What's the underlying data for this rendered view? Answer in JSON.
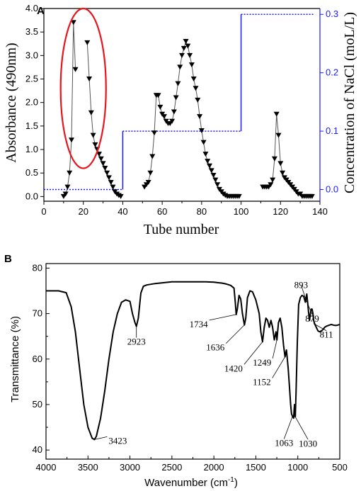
{
  "chart_data": [
    {
      "panel": "A",
      "type": "line",
      "xlabel": "Tube number",
      "ylabel": "Absorbance (490nm)",
      "y2label": "Concentration of NaCl (moL/L)",
      "xlim": [
        0,
        140
      ],
      "ylim": [
        -0.1,
        4.0
      ],
      "y2lim": [
        -0.02,
        0.31
      ],
      "xticks": [
        "0",
        "20",
        "40",
        "60",
        "80",
        "100",
        "120",
        "140"
      ],
      "yticks": [
        "0.0",
        "0.5",
        "1.0",
        "1.5",
        "2.0",
        "2.5",
        "3.0",
        "3.5",
        "4.0"
      ],
      "y2ticks": [
        "0.0",
        "0.1",
        "0.2",
        "0.3"
      ],
      "colors": {
        "absorbance": "#000000",
        "nacl": "#1a1aff",
        "ellipse": "#e8141e"
      },
      "highlight_ellipse": {
        "cx": 20,
        "cy": 2.3,
        "rx": 11.5,
        "ry": 1.7
      },
      "absorbance_segments": [
        {
          "x": [
            10,
            11,
            12,
            13,
            14,
            15,
            16
          ],
          "y": [
            0.0,
            0.05,
            0.2,
            0.5,
            1.2,
            3.7,
            2.7
          ]
        },
        {
          "x": [
            22,
            23,
            24,
            25,
            26,
            27,
            28,
            29,
            30,
            31,
            32,
            33,
            34,
            35,
            36,
            37,
            38,
            39
          ],
          "y": [
            3.27,
            2.5,
            1.78,
            1.3,
            1.1,
            1.0,
            0.9,
            0.8,
            0.7,
            0.6,
            0.5,
            0.4,
            0.3,
            0.2,
            0.1,
            0.05,
            0.02,
            0.0
          ]
        },
        {
          "x": [
            51,
            52,
            53,
            54,
            55,
            56,
            57,
            58,
            59,
            60,
            61,
            62,
            63,
            64,
            65,
            66,
            67,
            68,
            69,
            70,
            71,
            72,
            73,
            74,
            75,
            76,
            77,
            78,
            79,
            80,
            81,
            82,
            83,
            84,
            85,
            86,
            87,
            88,
            89,
            90,
            91,
            92,
            93,
            94,
            95,
            96,
            97,
            98,
            99
          ],
          "y": [
            0.2,
            0.25,
            0.3,
            0.5,
            0.85,
            1.35,
            2.15,
            2.15,
            1.9,
            1.75,
            1.7,
            1.6,
            1.55,
            1.55,
            1.6,
            1.8,
            2.1,
            2.4,
            2.75,
            3.0,
            3.15,
            3.3,
            3.2,
            3.0,
            2.8,
            2.5,
            2.3,
            2.05,
            1.7,
            1.4,
            1.15,
            0.9,
            0.75,
            0.65,
            0.55,
            0.45,
            0.35,
            0.25,
            0.15,
            0.1,
            0.05,
            0.02,
            0.0,
            0.0,
            0.0,
            0.0,
            0.0,
            0.0,
            0.0
          ]
        },
        {
          "x": [
            111,
            112,
            113,
            114,
            115,
            116,
            117,
            118,
            119,
            120,
            121,
            122,
            123,
            124,
            125,
            126,
            127,
            128,
            129,
            130,
            131,
            132,
            133,
            134,
            135,
            136
          ],
          "y": [
            0.2,
            0.2,
            0.2,
            0.2,
            0.25,
            0.35,
            0.8,
            1.75,
            1.3,
            0.7,
            0.5,
            0.4,
            0.35,
            0.3,
            0.25,
            0.2,
            0.15,
            0.1,
            0.05,
            0.05,
            0.0,
            0.0,
            0.0,
            0.0,
            0.0,
            0.0
          ]
        }
      ],
      "nacl_steps": {
        "x": [
          0,
          40,
          40,
          100,
          100,
          137
        ],
        "y": [
          0.0,
          0.0,
          0.1,
          0.1,
          0.3,
          0.3
        ]
      }
    },
    {
      "panel": "B",
      "type": "line",
      "xlabel": "Wavenumber (cm",
      "xlabel_sup": "-1",
      "xlabel_end": ")",
      "ylabel": "Transmittance (%)",
      "xlim": [
        4000,
        500
      ],
      "ylim": [
        38,
        81
      ],
      "xticks": [
        "4000",
        "3500",
        "3000",
        "2500",
        "2000",
        "1500",
        "1000",
        "500"
      ],
      "yticks": [
        "40",
        "50",
        "60",
        "70",
        "80"
      ],
      "spectrum": {
        "x": [
          4000,
          3850,
          3760,
          3700,
          3650,
          3600,
          3550,
          3500,
          3450,
          3423,
          3400,
          3350,
          3300,
          3250,
          3200,
          3150,
          3100,
          3050,
          3000,
          2970,
          2940,
          2923,
          2900,
          2870,
          2840,
          2800,
          2700,
          2600,
          2500,
          2400,
          2300,
          2200,
          2100,
          2000,
          1950,
          1900,
          1850,
          1800,
          1760,
          1745,
          1734,
          1720,
          1700,
          1680,
          1660,
          1636,
          1620,
          1600,
          1570,
          1540,
          1500,
          1460,
          1440,
          1420,
          1400,
          1380,
          1360,
          1340,
          1320,
          1300,
          1280,
          1260,
          1249,
          1230,
          1210,
          1190,
          1170,
          1152,
          1135,
          1115,
          1100,
          1085,
          1075,
          1063,
          1050,
          1040,
          1030,
          1020,
          1005,
          990,
          970,
          950,
          930,
          910,
          893,
          880,
          870,
          860,
          850,
          840,
          830,
          820,
          811,
          800,
          780,
          760,
          740,
          720,
          700,
          680,
          650,
          620,
          600,
          580,
          560,
          540,
          520,
          500
        ],
        "y": [
          75,
          75,
          74.6,
          71.5,
          66,
          58,
          50,
          45,
          42.6,
          42.3,
          43,
          47,
          53,
          60,
          66,
          70,
          72.5,
          73,
          72.7,
          70,
          68,
          67.2,
          69,
          74.5,
          76,
          76.3,
          76.6,
          76.8,
          77,
          77,
          77,
          77,
          77,
          76.9,
          76.8,
          76.7,
          76.5,
          76.2,
          75.6,
          72.5,
          69.8,
          71,
          74,
          73.2,
          70,
          67.5,
          69,
          73.5,
          75,
          74.8,
          73,
          70,
          66,
          63.8,
          67,
          69,
          68.5,
          67,
          68.5,
          67,
          64.2,
          66,
          64.2,
          68,
          69,
          67,
          63,
          60.5,
          62,
          58,
          54,
          50,
          48,
          47.4,
          47,
          50,
          47.3,
          53,
          64,
          72,
          73.5,
          74,
          73.8,
          72.5,
          74.3,
          72,
          70,
          68.5,
          70,
          71,
          71,
          70,
          68.5,
          67.8,
          67,
          66.2,
          66,
          66.2,
          66.5,
          67,
          67.3,
          67.5,
          67.6,
          67.5,
          67.4,
          67.4,
          67.5,
          67.6
        ]
      },
      "peaks": [
        {
          "label": "3423",
          "x": 3423,
          "y": 42.3
        },
        {
          "label": "2923",
          "x": 2923,
          "y": 67.2
        },
        {
          "label": "1734",
          "x": 1734,
          "y": 69.8
        },
        {
          "label": "1636",
          "x": 1636,
          "y": 67.5
        },
        {
          "label": "1420",
          "x": 1420,
          "y": 63.8
        },
        {
          "label": "1249",
          "x": 1249,
          "y": 64.2
        },
        {
          "label": "1152",
          "x": 1152,
          "y": 60.5
        },
        {
          "label": "1063",
          "x": 1063,
          "y": 47.4
        },
        {
          "label": "1030",
          "x": 1030,
          "y": 47.3
        },
        {
          "label": "893",
          "x": 893,
          "y": 72.5
        },
        {
          "label": "879",
          "x": 879,
          "y": 72
        },
        {
          "label": "811",
          "x": 811,
          "y": 67.8
        }
      ]
    }
  ]
}
